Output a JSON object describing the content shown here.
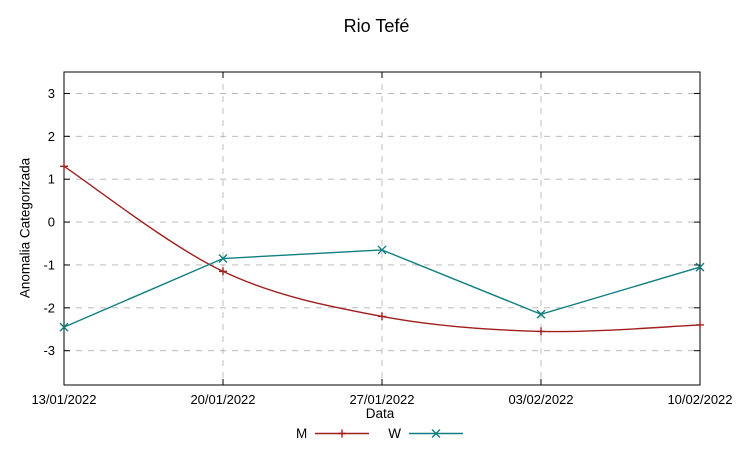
{
  "chart_data": {
    "type": "line",
    "title": "Rio Tefé",
    "xlabel": "Data",
    "ylabel": "Anomalia Categorizada",
    "categories": [
      "13/01/2022",
      "20/01/2022",
      "27/01/2022",
      "03/02/2022",
      "10/02/2022"
    ],
    "series": [
      {
        "name": "M",
        "color": "#a02020",
        "marker": "plus",
        "smooth": true,
        "values": [
          1.3,
          -1.15,
          -2.2,
          -2.55,
          -2.4
        ]
      },
      {
        "name": "W",
        "color": "#107f7f",
        "marker": "x",
        "smooth": false,
        "values": [
          -2.45,
          -0.85,
          -0.65,
          -2.15,
          -1.05
        ]
      }
    ],
    "yticks": [
      -3,
      -2,
      -1,
      0,
      1,
      2,
      3
    ],
    "ylim": [
      -3.8,
      3.5
    ],
    "grid": true,
    "legend_position": "bottom-center",
    "axis_color": "#000000",
    "grid_color": "#b0b0b0"
  }
}
